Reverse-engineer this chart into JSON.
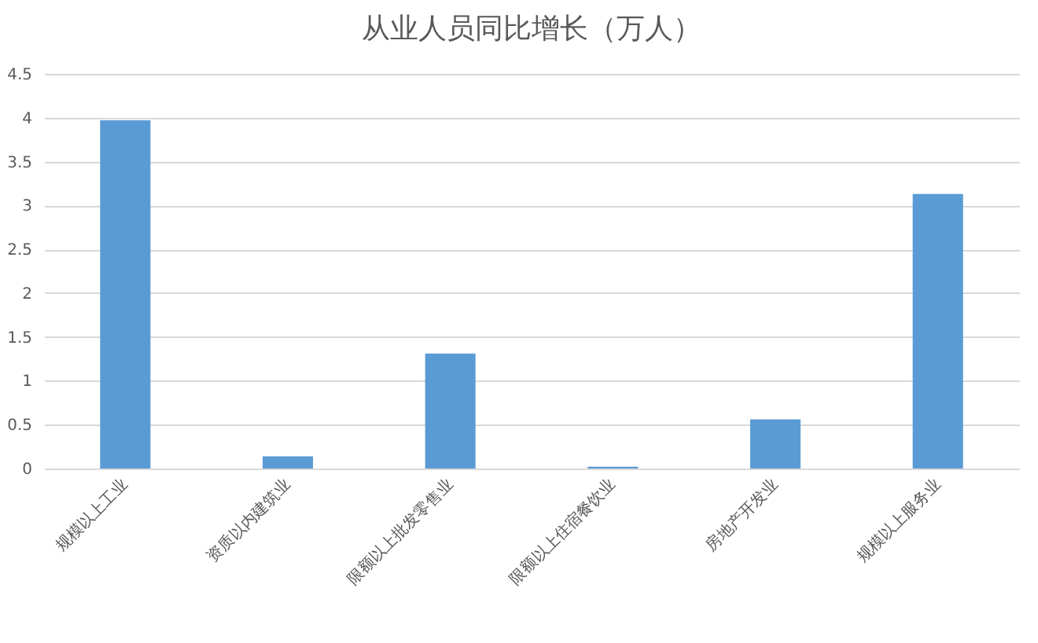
{
  "chart_data": {
    "type": "bar",
    "title": "从业人员同比增长（万人）",
    "categories": [
      "规模以上工业",
      "资质以内建筑业",
      "限额以上批发零售业",
      "限额以上住宿餐饮业",
      "房地产开发业",
      "规模以上服务业"
    ],
    "values": [
      3.97,
      0.14,
      1.31,
      0.02,
      0.56,
      3.13
    ],
    "color": "#5b9bd5",
    "ylim": [
      0,
      4.5
    ],
    "yticks": [
      0,
      0.5,
      1,
      1.5,
      2,
      2.5,
      3,
      3.5,
      4,
      4.5
    ],
    "grid": "y"
  }
}
